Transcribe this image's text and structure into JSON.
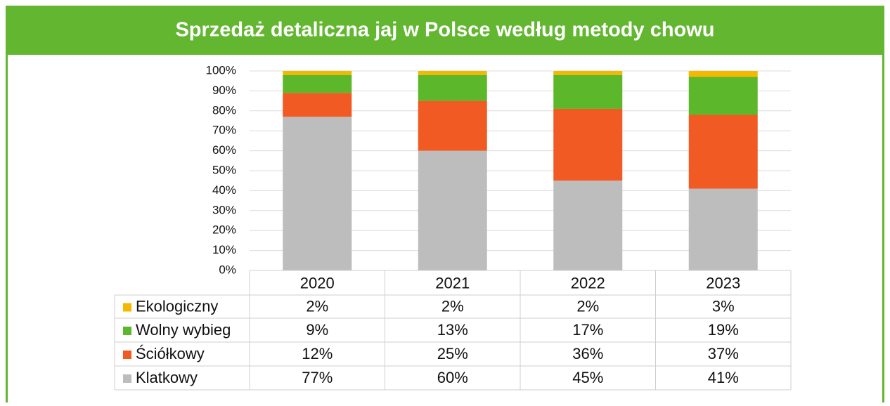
{
  "chart_data": {
    "type": "stacked_bar",
    "title": "Sprzedaż detaliczna jaj w Polsce według metody chowu",
    "categories": [
      "2020",
      "2021",
      "2022",
      "2023"
    ],
    "series": [
      {
        "name": "Ekologiczny",
        "color": "#f5b800",
        "values": [
          2,
          2,
          2,
          3
        ],
        "value_labels": [
          "2%",
          "2%",
          "2%",
          "3%"
        ]
      },
      {
        "name": "Wolny wybieg",
        "color": "#5cb82a",
        "values": [
          9,
          13,
          17,
          19
        ],
        "value_labels": [
          "9%",
          "13%",
          "17%",
          "19%"
        ]
      },
      {
        "name": "Ściółkowy",
        "color": "#f15a22",
        "values": [
          12,
          25,
          36,
          37
        ],
        "value_labels": [
          "12%",
          "25%",
          "36%",
          "37%"
        ]
      },
      {
        "name": "Klatkowy",
        "color": "#bdbdbd",
        "values": [
          77,
          60,
          45,
          41
        ],
        "value_labels": [
          "77%",
          "60%",
          "45%",
          "41%"
        ]
      }
    ],
    "ylim": [
      0,
      100
    ],
    "yticks": [
      {
        "value": 0,
        "label": "0%"
      },
      {
        "value": 10,
        "label": "10%"
      },
      {
        "value": 20,
        "label": "20%"
      },
      {
        "value": 30,
        "label": "30%"
      },
      {
        "value": 40,
        "label": "40%"
      },
      {
        "value": 50,
        "label": "50%"
      },
      {
        "value": 60,
        "label": "60%"
      },
      {
        "value": 70,
        "label": "70%"
      },
      {
        "value": 80,
        "label": "80%"
      },
      {
        "value": 90,
        "label": "90%"
      },
      {
        "value": 100,
        "label": "100%"
      }
    ],
    "grid": true
  }
}
